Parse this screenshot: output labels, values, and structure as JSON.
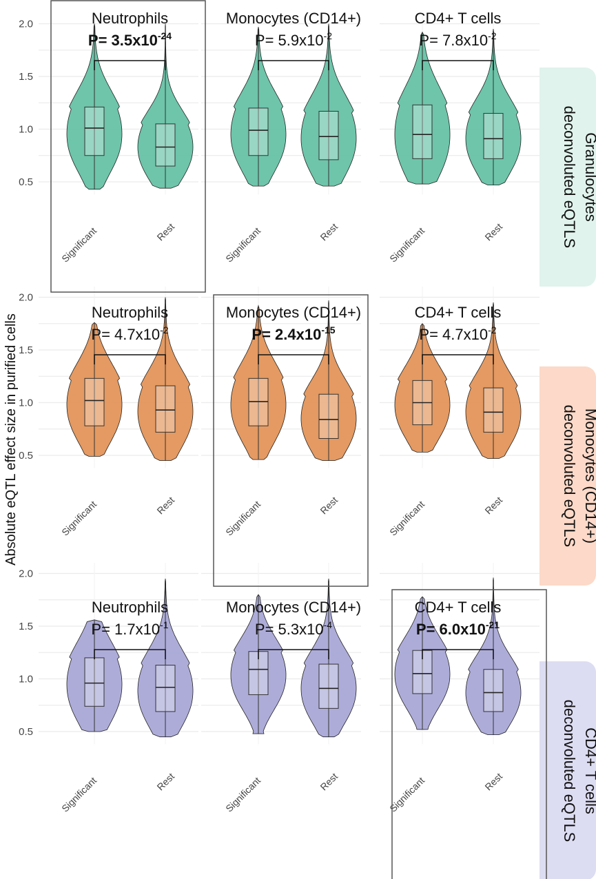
{
  "chart_data": {
    "type": "violin",
    "ylabel": "Absolute eQTL effect size in purified cells",
    "ylim": [
      0.38,
      2.1
    ],
    "yticks": [
      0.5,
      1.0,
      1.5,
      2.0
    ],
    "ytick_labels": [
      "0.5",
      "1.0",
      "1.5",
      "2.0"
    ],
    "categories": [
      "Significant",
      "Rest"
    ],
    "rows": [
      {
        "label_line1": "Granulocytes",
        "label_line2": "deconvoluted eQTLS",
        "color": "#66c2a5",
        "strip_color": "#e0f3ec",
        "panels": [
          {
            "name": "Neutrophils",
            "p_base": "P= 3.5x10",
            "p_exp": "-24",
            "bold": true,
            "series": [
              {
                "name": "Significant",
                "min": 0.43,
                "q1": 0.75,
                "median": 1.01,
                "q3": 1.21,
                "max": 2.0
              },
              {
                "name": "Rest",
                "min": 0.44,
                "q1": 0.65,
                "median": 0.83,
                "q3": 1.05,
                "max": 2.0
              }
            ]
          },
          {
            "name": "Monocytes (CD14+)",
            "p_base": "P= 5.9x10",
            "p_exp": "-2",
            "bold": false,
            "series": [
              {
                "name": "Significant",
                "min": 0.46,
                "q1": 0.75,
                "median": 0.99,
                "q3": 1.2,
                "max": 1.97
              },
              {
                "name": "Rest",
                "min": 0.46,
                "q1": 0.71,
                "median": 0.93,
                "q3": 1.17,
                "max": 2.0
              }
            ]
          },
          {
            "name": "CD4+ T cells",
            "p_base": "P= 7.8x10",
            "p_exp": "-2",
            "bold": false,
            "series": [
              {
                "name": "Significant",
                "min": 0.48,
                "q1": 0.72,
                "median": 0.95,
                "q3": 1.23,
                "max": 1.92
              },
              {
                "name": "Rest",
                "min": 0.47,
                "q1": 0.72,
                "median": 0.91,
                "q3": 1.15,
                "max": 1.95
              }
            ]
          }
        ]
      },
      {
        "label_line1": "Monocytes (CD14+)",
        "label_line2": "deconvoluted eQTLS",
        "color": "#e3955a",
        "strip_color": "#fcd9c8",
        "panels": [
          {
            "name": "Neutrophils",
            "p_base": "P= 4.7x10",
            "p_exp": "-2",
            "bold": false,
            "series": [
              {
                "name": "Significant",
                "min": 0.49,
                "q1": 0.78,
                "median": 1.02,
                "q3": 1.23,
                "max": 1.76
              },
              {
                "name": "Rest",
                "min": 0.45,
                "q1": 0.72,
                "median": 0.93,
                "q3": 1.16,
                "max": 2.0
              }
            ]
          },
          {
            "name": "Monocytes (CD14+)",
            "p_base": "P= 2.4x10",
            "p_exp": "-15",
            "bold": true,
            "series": [
              {
                "name": "Significant",
                "min": 0.46,
                "q1": 0.78,
                "median": 1.01,
                "q3": 1.23,
                "max": 1.92
              },
              {
                "name": "Rest",
                "min": 0.45,
                "q1": 0.66,
                "median": 0.84,
                "q3": 1.08,
                "max": 1.97
              }
            ]
          },
          {
            "name": "CD4+ T cells",
            "p_base": "P= 4.7x10",
            "p_exp": "-2",
            "bold": false,
            "series": [
              {
                "name": "Significant",
                "min": 0.53,
                "q1": 0.79,
                "median": 1.0,
                "q3": 1.21,
                "max": 1.75
              },
              {
                "name": "Rest",
                "min": 0.47,
                "q1": 0.72,
                "median": 0.91,
                "q3": 1.14,
                "max": 1.95
              }
            ]
          }
        ]
      },
      {
        "label_line1": "CD4+ T cells",
        "label_line2": "deconvoluted eQTLS",
        "color": "#a9a8d7",
        "strip_color": "#dcdcf2",
        "panels": [
          {
            "name": "Neutrophils",
            "p_base": "P= 1.7x10",
            "p_exp": "-1",
            "bold": false,
            "series": [
              {
                "name": "Significant",
                "min": 0.5,
                "q1": 0.74,
                "median": 0.96,
                "q3": 1.2,
                "max": 1.56
              },
              {
                "name": "Rest",
                "min": 0.45,
                "q1": 0.69,
                "median": 0.92,
                "q3": 1.13,
                "max": 1.95
              }
            ]
          },
          {
            "name": "Monocytes (CD14+)",
            "p_base": "P= 5.3x10",
            "p_exp": "-4",
            "bold": false,
            "series": [
              {
                "name": "Significant",
                "min": 0.48,
                "q1": 0.85,
                "median": 1.09,
                "q3": 1.26,
                "max": 1.8
              },
              {
                "name": "Rest",
                "min": 0.45,
                "q1": 0.72,
                "median": 0.91,
                "q3": 1.14,
                "max": 1.95
              }
            ]
          },
          {
            "name": "CD4+ T cells",
            "p_base": "P= 6.0x10",
            "p_exp": "-21",
            "bold": true,
            "series": [
              {
                "name": "Significant",
                "min": 0.52,
                "q1": 0.86,
                "median": 1.05,
                "q3": 1.27,
                "max": 1.78
              },
              {
                "name": "Rest",
                "min": 0.47,
                "q1": 0.69,
                "median": 0.87,
                "q3": 1.09,
                "max": 1.96
              }
            ]
          }
        ]
      }
    ]
  }
}
